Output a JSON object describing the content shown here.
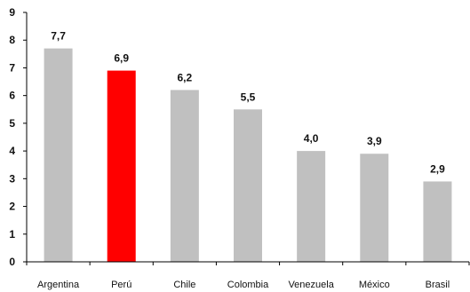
{
  "chart_data": {
    "type": "bar",
    "title": "",
    "xlabel": "",
    "ylabel": "",
    "categories": [
      "Argentina",
      "Perú",
      "Chile",
      "Colombia",
      "Venezuela",
      "México",
      "Brasil"
    ],
    "values": [
      7.7,
      6.9,
      6.2,
      5.5,
      4.0,
      3.9,
      2.9
    ],
    "data_labels": [
      "7,7",
      "6,9",
      "6,2",
      "5,5",
      "4,0",
      "3,9",
      "2,9"
    ],
    "ylim": [
      0,
      9
    ],
    "yticks": [
      "0",
      "1",
      "2",
      "3",
      "4",
      "5",
      "6",
      "7",
      "8",
      "9"
    ],
    "grid": false,
    "legend": "none",
    "colors": {
      "default_bar": "#c0c0c0",
      "highlight_bar": "#ff0000",
      "axis": "#000000"
    },
    "highlight_category": "Perú"
  }
}
